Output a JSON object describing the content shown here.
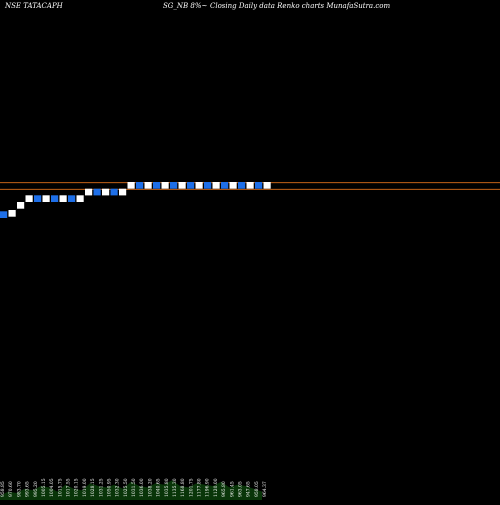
{
  "header": {
    "symbol": "NSE TATACAPH",
    "series": "SG_NB 8%~",
    "description": "Closing Daily data Renko charts MunafaSutra.com"
  },
  "colors": {
    "background": "#000000",
    "up_brick": "#ffffff",
    "down_brick": "#1e6fe8",
    "reference_line": "#e0701a",
    "volume": "#0a3b0a",
    "text": "#ffffff"
  },
  "chart_data": {
    "type": "renko",
    "title": "Closing Daily data Renko charts",
    "reference_lines": [
      1023,
      1013
    ],
    "ylim": [
      600,
      1100
    ],
    "bricks": [
      {
        "dir": "down",
        "value": 970.0
      },
      {
        "dir": "up",
        "value": 982.0
      },
      {
        "dir": "up",
        "value": 994.0
      },
      {
        "dir": "up",
        "value": 1004.0
      },
      {
        "dir": "down",
        "value": 994.0
      },
      {
        "dir": "up",
        "value": 1004.0
      },
      {
        "dir": "down",
        "value": 994.0
      },
      {
        "dir": "up",
        "value": 1004.0
      },
      {
        "dir": "down",
        "value": 994.0
      },
      {
        "dir": "up",
        "value": 1004.0
      },
      {
        "dir": "up",
        "value": 1014.0
      },
      {
        "dir": "down",
        "value": 1004.0
      },
      {
        "dir": "up",
        "value": 1014.0
      },
      {
        "dir": "down",
        "value": 1004.0
      },
      {
        "dir": "up",
        "value": 1014.0
      },
      {
        "dir": "up",
        "value": 1024.0
      },
      {
        "dir": "down",
        "value": 1014.0
      },
      {
        "dir": "up",
        "value": 1024.0
      },
      {
        "dir": "down",
        "value": 1014.0
      },
      {
        "dir": "up",
        "value": 1024.0
      },
      {
        "dir": "down",
        "value": 1014.0
      },
      {
        "dir": "up",
        "value": 1024.0
      },
      {
        "dir": "down",
        "value": 1014.0
      },
      {
        "dir": "up",
        "value": 1024.0
      },
      {
        "dir": "down",
        "value": 1014.0
      },
      {
        "dir": "up",
        "value": 1024.0
      },
      {
        "dir": "down",
        "value": 1014.0
      },
      {
        "dir": "up",
        "value": 1024.0
      },
      {
        "dir": "down",
        "value": 1014.0
      },
      {
        "dir": "up",
        "value": 1024.0
      },
      {
        "dir": "down",
        "value": 1014.0
      },
      {
        "dir": "up",
        "value": 1024.0
      }
    ],
    "x_labels": [
      "958.85",
      "970.60",
      "983.70",
      "993.65",
      "995.20",
      "1005.15",
      "1004.05",
      "1015.75",
      "1017.55",
      "1020.15",
      "1019.00",
      "1028.15",
      "1031.25",
      "1050.95",
      "1032.30",
      "1025.50",
      "1031.50",
      "1036.00",
      "1038.20",
      "1040.65",
      "1035.80",
      "1135.30",
      "1168.80",
      "1201.75",
      "1177.80",
      "1196.90",
      "1120.00",
      "965.80",
      "961.45",
      "963.05",
      "947.65",
      "958.05",
      "964.37"
    ],
    "volume_levels": [
      0.15,
      0.3,
      0.25,
      0.4,
      0.35,
      0.5,
      0.45,
      0.3,
      0.55,
      0.4,
      0.35,
      0.6,
      0.5,
      0.45,
      0.55,
      0.4,
      0.65,
      0.5,
      0.45,
      0.6,
      0.55,
      0.7,
      0.5,
      0.45,
      0.6,
      0.55,
      0.5,
      0.65,
      0.45,
      0.55,
      0.5,
      0.4,
      0.3
    ]
  }
}
